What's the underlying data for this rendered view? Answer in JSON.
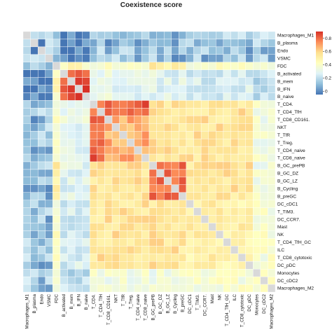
{
  "chart_data": {
    "type": "heatmap",
    "title": "Coexistence score",
    "row_labels": [
      "Macrophages_M1",
      "B_plasma",
      "Endo",
      "VSMC",
      "FDC",
      "B_activated",
      "B_mem",
      "B_IFN",
      "B_naive",
      "T_CD4.",
      "T_CD4_TfH",
      "T_CD8_CD161.",
      "NKT",
      "T_TfR",
      "T_Treg.",
      "T_CD4_naive",
      "T_CD8_naive",
      "B_GC_prePB",
      "B_GC_DZ",
      "B_GC_LZ",
      "B_Cycling",
      "B_preGC",
      "DC_cDC1",
      "T_TIM3.",
      "DC_CCR7.",
      "Mast",
      "NK",
      "T_CD4_TfH_GC",
      "ILC",
      "T_CD8_cytotoxic",
      "DC_pDC",
      "Monocytes",
      "DC_cDC2",
      "Macrophages_M2"
    ],
    "col_labels": [
      "Macrophages_M1",
      "B_plasma",
      "Endo",
      "VSMC",
      "FDC",
      "B_activated",
      "B_mem",
      "B_IFN",
      "B_naive",
      "T_CD4.",
      "T_CD4_TfH",
      "T_CD8_CD161.",
      "NKT",
      "T_TfR",
      "T_Treg.",
      "T_CD4_naive",
      "T_CD8_naive",
      "B_GC_prePB",
      "B_GC_DZ",
      "B_GC_LZ",
      "B_Cycling",
      "B_preGC",
      "DC_cDC1",
      "T_TIM3.",
      "DC_CCR7.",
      "Mast",
      "NK",
      "T_CD4_TfH_GC",
      "ILC",
      "T_CD8_cytotoxic",
      "DC_pDC",
      "Monocytes",
      "DC_cDC2",
      "Macrophages_M2"
    ],
    "color_scale": {
      "min": -0.05,
      "max": 0.9,
      "stops": [
        "#4575b4",
        "#91bfdb",
        "#e0f3f8",
        "#ffffbf",
        "#fee090",
        "#fc8d59",
        "#d73027"
      ]
    },
    "legend_ticks": [
      0.8,
      0.6,
      0.4,
      0.2,
      0
    ],
    "legend_placement": "right",
    "diagonal_color": "#d9d9d9"
  }
}
